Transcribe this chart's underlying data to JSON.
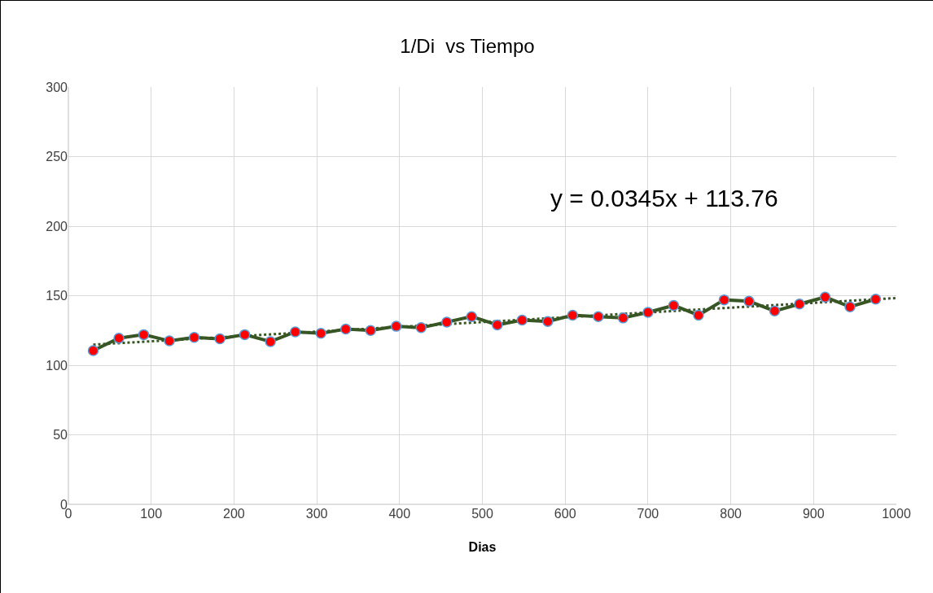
{
  "chart_data": {
    "type": "line",
    "title": "1/Di  vs Tiempo",
    "xlabel": "Dias",
    "x": [
      30,
      61,
      91,
      122,
      152,
      183,
      213,
      244,
      274,
      305,
      335,
      365,
      396,
      426,
      457,
      487,
      518,
      548,
      579,
      609,
      640,
      670,
      700,
      731,
      761,
      792,
      822,
      853,
      883,
      914,
      944,
      975
    ],
    "series": [
      {
        "color": "#375623",
        "marker": "circle",
        "line_style": "solid",
        "values": [
          110.5,
          119.5,
          122,
          117.5,
          120,
          119,
          122,
          117,
          124,
          123,
          126,
          125,
          128,
          127,
          131,
          135,
          129,
          132.5,
          131.5,
          136,
          135,
          134,
          138,
          143,
          136,
          147,
          146,
          139,
          144,
          149,
          142,
          147.5
        ]
      },
      {
        "type": "line",
        "color": "#375623",
        "marker": "none",
        "line_style": "dotted",
        "x": [
          30,
          1000
        ],
        "values": [
          114.8,
          148.3
        ]
      }
    ],
    "annotations": [
      "y = 0.0345x + 113.76"
    ],
    "xlim": [
      0,
      1000
    ],
    "xticks": [
      0,
      100,
      200,
      300,
      400,
      500,
      600,
      700,
      800,
      900,
      1000
    ],
    "ylim": [
      0,
      300
    ],
    "yticks": [
      0,
      50,
      100,
      150,
      200,
      250,
      300
    ],
    "grid": true
  }
}
